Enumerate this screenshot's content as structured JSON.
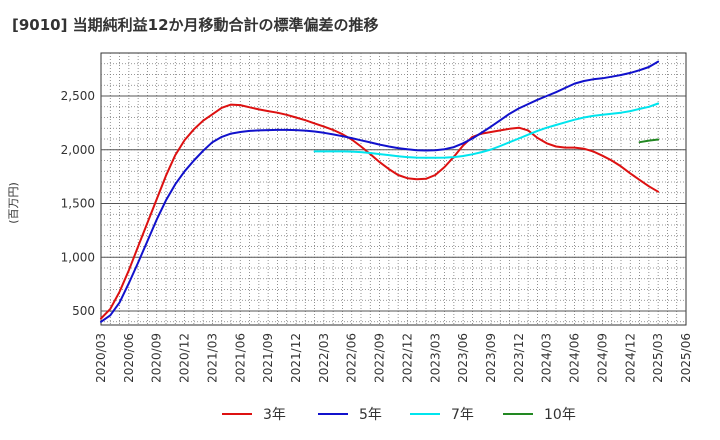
{
  "chart_data": {
    "type": "line",
    "title": "[9010]  当期純利益12か月移動合計の標準偏差の推移",
    "ylabel": "(百万円)",
    "xlabel": "",
    "x_ticks": [
      "2020/03",
      "2020/06",
      "2020/09",
      "2020/12",
      "2021/03",
      "2021/06",
      "2021/09",
      "2021/12",
      "2022/03",
      "2022/06",
      "2022/09",
      "2022/12",
      "2023/03",
      "2023/06",
      "2023/09",
      "2023/12",
      "2024/03",
      "2024/06",
      "2024/09",
      "2024/12",
      "2025/03",
      "2025/06"
    ],
    "y_ticks": [
      500,
      1000,
      1500,
      2000,
      2500
    ],
    "y_tick_labels": [
      "500",
      "1,000",
      "1,500",
      "2,000",
      "2,500"
    ],
    "ylim": [
      370,
      2900
    ],
    "grid": true,
    "legend_position": "bottom",
    "series": [
      {
        "name": "3年",
        "color": "#dd1111",
        "x": [
          "2020/03",
          "2020/04",
          "2020/05",
          "2020/06",
          "2020/07",
          "2020/08",
          "2020/09",
          "2020/10",
          "2020/11",
          "2020/12",
          "2021/01",
          "2021/02",
          "2021/03",
          "2021/04",
          "2021/05",
          "2021/06",
          "2021/07",
          "2021/08",
          "2021/09",
          "2021/10",
          "2021/11",
          "2021/12",
          "2022/01",
          "2022/02",
          "2022/03",
          "2022/04",
          "2022/05",
          "2022/06",
          "2022/07",
          "2022/08",
          "2022/09",
          "2022/10",
          "2022/11",
          "2022/12",
          "2023/01",
          "2023/02",
          "2023/03",
          "2023/04",
          "2023/05",
          "2023/06",
          "2023/07",
          "2023/08",
          "2023/09",
          "2023/10",
          "2023/11",
          "2023/12",
          "2024/01",
          "2024/02",
          "2024/03",
          "2024/04",
          "2024/05",
          "2024/06",
          "2024/07",
          "2024/08",
          "2024/09",
          "2024/10",
          "2024/11",
          "2024/12",
          "2025/01",
          "2025/02",
          "2025/03"
        ],
        "values": [
          430,
          520,
          680,
          880,
          1100,
          1320,
          1540,
          1760,
          1950,
          2090,
          2190,
          2270,
          2330,
          2390,
          2420,
          2415,
          2395,
          2375,
          2360,
          2345,
          2325,
          2300,
          2275,
          2245,
          2215,
          2185,
          2145,
          2095,
          2030,
          1960,
          1885,
          1820,
          1765,
          1735,
          1725,
          1730,
          1765,
          1840,
          1935,
          2040,
          2120,
          2150,
          2165,
          2180,
          2195,
          2205,
          2180,
          2110,
          2060,
          2030,
          2020,
          2020,
          2010,
          1985,
          1945,
          1900,
          1845,
          1780,
          1720,
          1660,
          1610
        ]
      },
      {
        "name": "5年",
        "color": "#1111cc",
        "x": [
          "2020/03",
          "2020/04",
          "2020/05",
          "2020/06",
          "2020/07",
          "2020/08",
          "2020/09",
          "2020/10",
          "2020/11",
          "2020/12",
          "2021/01",
          "2021/02",
          "2021/03",
          "2021/04",
          "2021/05",
          "2021/06",
          "2021/07",
          "2021/08",
          "2021/09",
          "2021/10",
          "2021/11",
          "2021/12",
          "2022/01",
          "2022/02",
          "2022/03",
          "2022/04",
          "2022/05",
          "2022/06",
          "2022/07",
          "2022/08",
          "2022/09",
          "2022/10",
          "2022/11",
          "2022/12",
          "2023/01",
          "2023/02",
          "2023/03",
          "2023/04",
          "2023/05",
          "2023/06",
          "2023/07",
          "2023/08",
          "2023/09",
          "2023/10",
          "2023/11",
          "2023/12",
          "2024/01",
          "2024/02",
          "2024/03",
          "2024/04",
          "2024/05",
          "2024/06",
          "2024/07",
          "2024/08",
          "2024/09",
          "2024/10",
          "2024/11",
          "2024/12",
          "2025/01",
          "2025/02",
          "2025/03"
        ],
        "values": [
          400,
          460,
          580,
          760,
          950,
          1150,
          1350,
          1530,
          1680,
          1800,
          1900,
          1990,
          2070,
          2120,
          2150,
          2165,
          2175,
          2180,
          2183,
          2185,
          2185,
          2183,
          2178,
          2170,
          2158,
          2143,
          2126,
          2108,
          2088,
          2068,
          2048,
          2030,
          2015,
          2004,
          1996,
          1993,
          1995,
          2005,
          2025,
          2060,
          2105,
          2160,
          2215,
          2275,
          2335,
          2385,
          2425,
          2465,
          2500,
          2535,
          2575,
          2615,
          2640,
          2655,
          2665,
          2680,
          2695,
          2715,
          2740,
          2770,
          2820
        ]
      },
      {
        "name": "7年",
        "color": "#00e5ee",
        "x": [
          "2022/02",
          "2022/03",
          "2022/04",
          "2022/05",
          "2022/06",
          "2022/07",
          "2022/08",
          "2022/09",
          "2022/10",
          "2022/11",
          "2022/12",
          "2023/01",
          "2023/02",
          "2023/03",
          "2023/04",
          "2023/05",
          "2023/06",
          "2023/07",
          "2023/08",
          "2023/09",
          "2023/10",
          "2023/11",
          "2023/12",
          "2024/01",
          "2024/02",
          "2024/03",
          "2024/04",
          "2024/05",
          "2024/06",
          "2024/07",
          "2024/08",
          "2024/09",
          "2024/10",
          "2024/11",
          "2024/12",
          "2025/01",
          "2025/02",
          "2025/03"
        ],
        "values": [
          1985,
          1985,
          1985,
          1985,
          1983,
          1978,
          1970,
          1960,
          1950,
          1940,
          1932,
          1927,
          1925,
          1925,
          1927,
          1932,
          1942,
          1958,
          1978,
          2002,
          2035,
          2070,
          2105,
          2140,
          2175,
          2205,
          2230,
          2255,
          2280,
          2300,
          2315,
          2325,
          2335,
          2345,
          2360,
          2380,
          2400,
          2430
        ]
      },
      {
        "name": "10年",
        "color": "#228822",
        "x": [
          "2025/01",
          "2025/02",
          "2025/03"
        ],
        "values": [
          2070,
          2085,
          2095
        ]
      }
    ]
  }
}
